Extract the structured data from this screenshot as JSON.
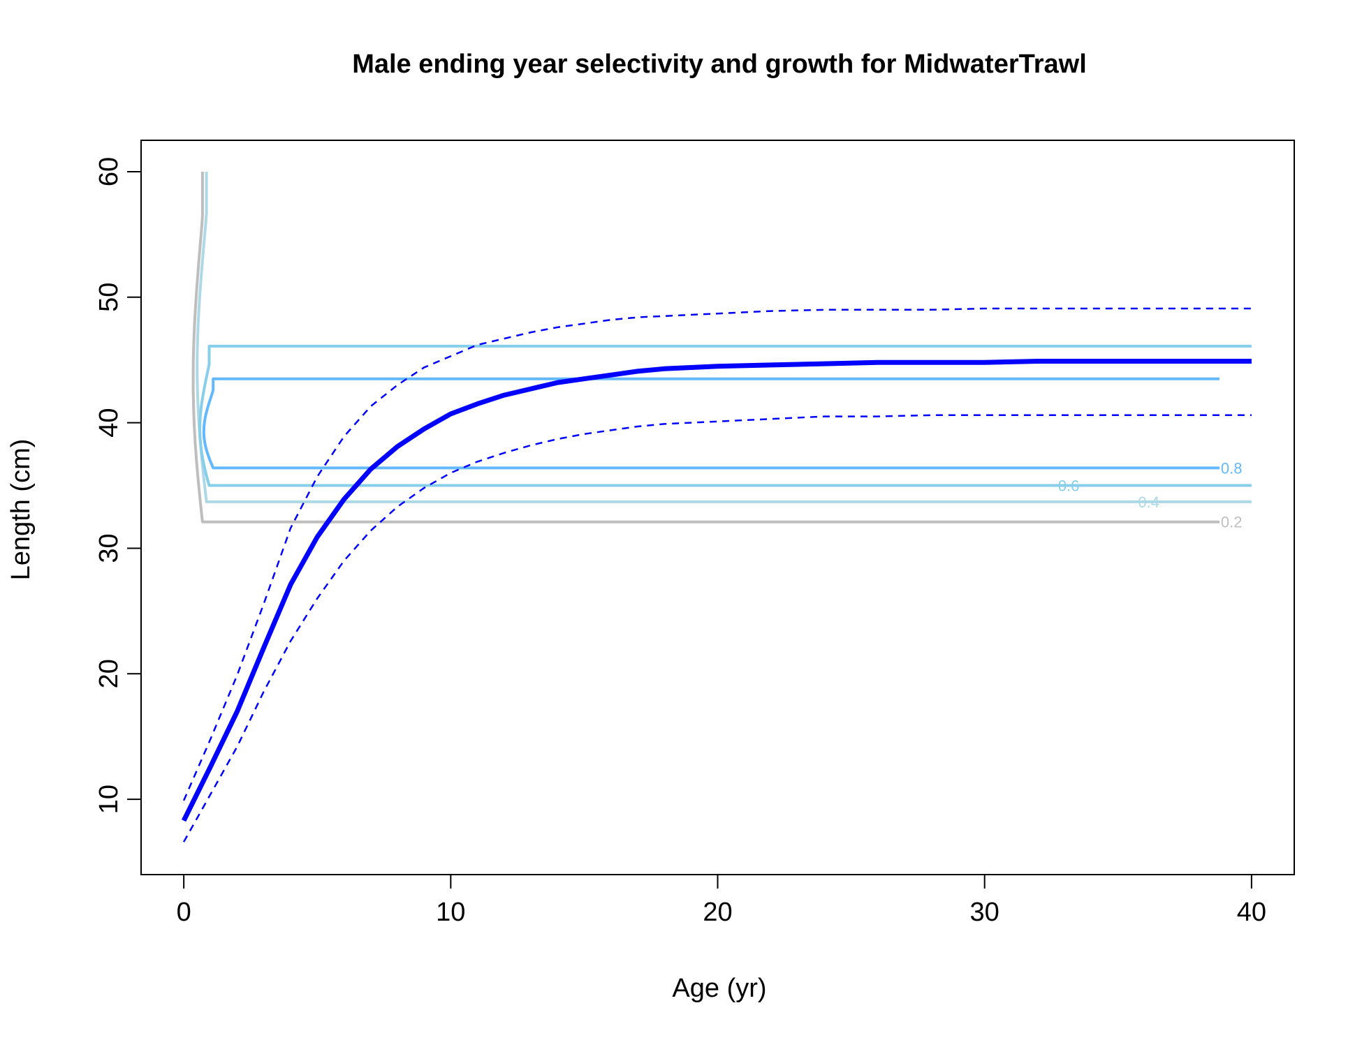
{
  "chart_data": {
    "type": "line",
    "title": "Male ending year selectivity and growth for MidwaterTrawl",
    "xlabel": "Age (yr)",
    "ylabel": "Length (cm)",
    "xlim": [
      -1.6,
      41.6
    ],
    "ylim": [
      4,
      62.5
    ],
    "xticks": [
      "0",
      "10",
      "20",
      "30",
      "40"
    ],
    "yticks": [
      "10",
      "20",
      "30",
      "40",
      "50",
      "60"
    ],
    "grid": false,
    "legend": "none",
    "growth": {
      "color": "#0000FF",
      "x": [
        0,
        1,
        2,
        3,
        4,
        5,
        6,
        7,
        8,
        9,
        10,
        11,
        12,
        13,
        14,
        15,
        16,
        17,
        18,
        19,
        20,
        22,
        24,
        26,
        28,
        30,
        32,
        34,
        36,
        38,
        40
      ],
      "mean": [
        8.3,
        12.6,
        17.0,
        22.1,
        27.1,
        30.9,
        33.9,
        36.3,
        38.1,
        39.5,
        40.7,
        41.5,
        42.2,
        42.7,
        43.2,
        43.5,
        43.8,
        44.1,
        44.3,
        44.4,
        44.5,
        44.6,
        44.7,
        44.8,
        44.8,
        44.8,
        44.9,
        44.9,
        44.9,
        44.9,
        44.9
      ],
      "upper": [
        9.9,
        14.8,
        19.9,
        25.6,
        31.6,
        35.7,
        38.9,
        41.3,
        43.0,
        44.4,
        45.3,
        46.2,
        46.7,
        47.2,
        47.6,
        47.9,
        48.2,
        48.4,
        48.5,
        48.6,
        48.7,
        48.9,
        49.0,
        49.0,
        49.0,
        49.1,
        49.1,
        49.1,
        49.1,
        49.1,
        49.1
      ],
      "lower": [
        6.6,
        10.4,
        14.2,
        18.6,
        22.6,
        26.0,
        29.0,
        31.4,
        33.3,
        34.8,
        36.0,
        36.9,
        37.6,
        38.2,
        38.7,
        39.1,
        39.4,
        39.7,
        39.9,
        40.0,
        40.1,
        40.3,
        40.5,
        40.5,
        40.6,
        40.6,
        40.6,
        40.6,
        40.6,
        40.6,
        40.6
      ]
    },
    "selectivity_contours": [
      {
        "label": "0.2",
        "color": "#BEBEBE",
        "low": 32.1,
        "high": 60.0,
        "x_min": 0.45,
        "x_max": 38.8,
        "label_x": 39.25,
        "label_y": 32.1
      },
      {
        "label": "0.4",
        "color": "#ADD8E6",
        "low": 33.7,
        "high": 60.0,
        "x_min": 0.6,
        "x_max": 40.0,
        "label_x": 36.15,
        "label_y": 33.7
      },
      {
        "label": "0.6",
        "color": "#87CEEB",
        "low": 35.0,
        "high": 46.1,
        "x_min": 0.7,
        "x_max": 40.0,
        "label_x": 33.15,
        "label_y": 35.0
      },
      {
        "label": "0.8",
        "color": "#63B8FF",
        "low": 36.4,
        "high": 43.5,
        "x_min": 0.85,
        "x_max": 38.8,
        "label_x": 39.25,
        "label_y": 36.4
      }
    ]
  }
}
